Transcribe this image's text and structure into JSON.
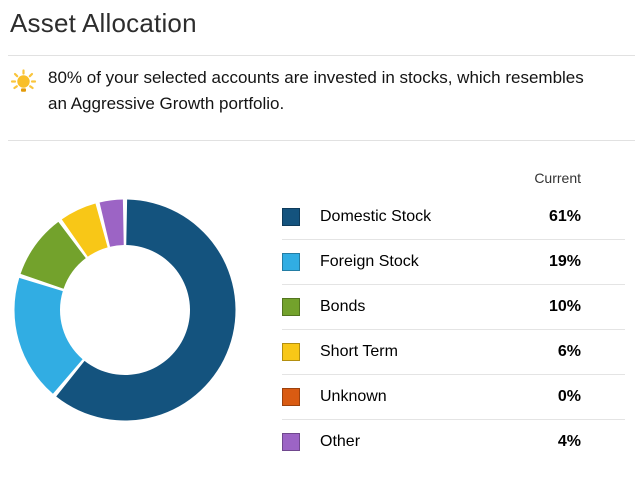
{
  "header": {
    "title": "Asset Allocation"
  },
  "tip": {
    "icon": "lightbulb-icon",
    "icon_color": "#F9BF29",
    "icon_base_color": "#E39B0A",
    "text": "80% of your selected accounts are invested in stocks, which resembles an Aggressive Growth portfolio."
  },
  "chart_data": {
    "type": "pie",
    "variant": "donut",
    "title": "Asset Allocation",
    "legend_header": "Current",
    "legend_position": "right",
    "start_angle_deg": -90,
    "direction": "clockwise",
    "inner_radius_ratio": 0.59,
    "slice_gap_deg": 2.2,
    "categories": [
      "Domestic Stock",
      "Foreign Stock",
      "Bonds",
      "Short Term",
      "Unknown",
      "Other"
    ],
    "values": [
      61,
      19,
      10,
      6,
      0,
      4
    ],
    "series": [
      {
        "label": "Domestic Stock",
        "value": 61,
        "display": "61%",
        "color": "#14537E"
      },
      {
        "label": "Foreign Stock",
        "value": 19,
        "display": "19%",
        "color": "#31ADE3"
      },
      {
        "label": "Bonds",
        "value": 10,
        "display": "10%",
        "color": "#73A22C"
      },
      {
        "label": "Short Term",
        "value": 6,
        "display": "6%",
        "color": "#F8C717"
      },
      {
        "label": "Unknown",
        "value": 0,
        "display": "0%",
        "color": "#D95B12"
      },
      {
        "label": "Other",
        "value": 4,
        "display": "4%",
        "color": "#9C64C5"
      }
    ]
  }
}
